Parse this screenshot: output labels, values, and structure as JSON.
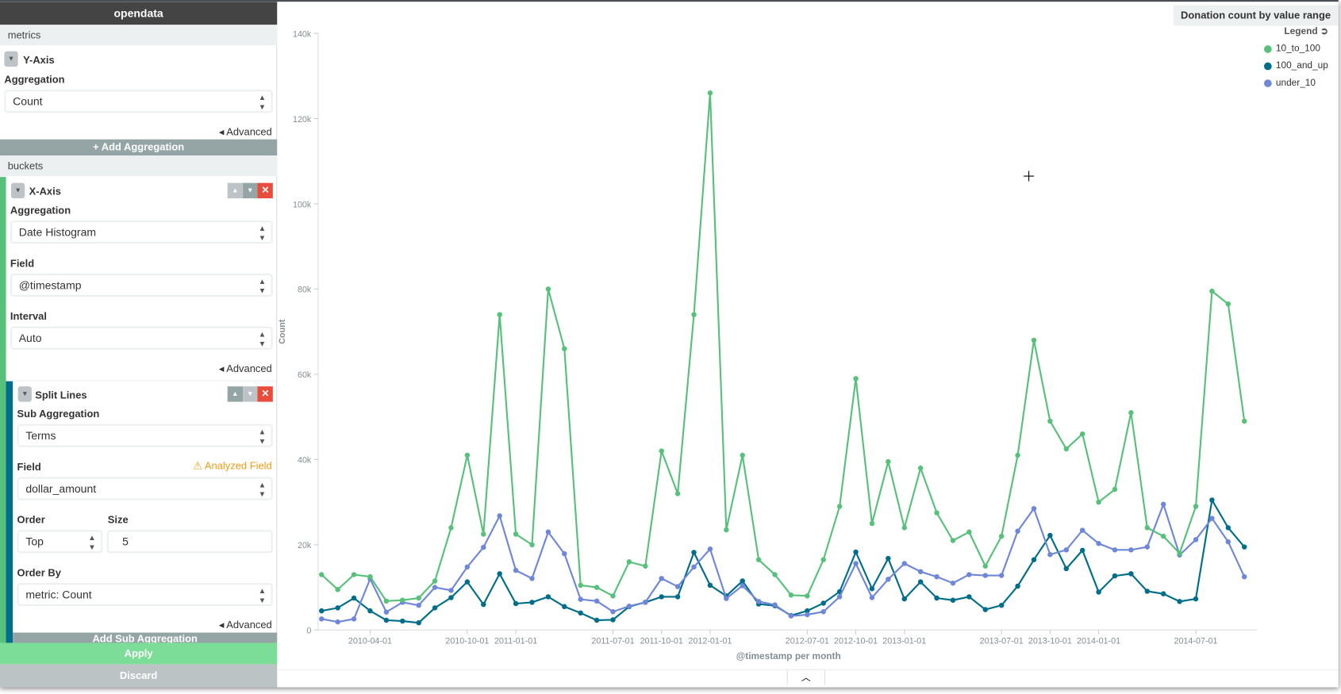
{
  "sidebar": {
    "index_title": "opendata",
    "metrics_label": "metrics",
    "y_axis": {
      "title": "Y-Axis",
      "aggregation_label": "Aggregation",
      "aggregation_value": "Count",
      "advanced": "Advanced"
    },
    "add_aggregation": "+ Add Aggregation",
    "buckets_label": "buckets",
    "x_axis": {
      "title": "X-Axis",
      "aggregation_label": "Aggregation",
      "aggregation_value": "Date Histogram",
      "field_label": "Field",
      "field_value": "@timestamp",
      "interval_label": "Interval",
      "interval_value": "Auto",
      "advanced": "Advanced"
    },
    "split_lines": {
      "title": "Split Lines",
      "sub_aggregation_label": "Sub Aggregation",
      "sub_aggregation_value": "Terms",
      "field_label": "Field",
      "field_warning": "Analyzed Field",
      "field_value": "dollar_amount",
      "order_label": "Order",
      "order_value": "Top",
      "size_label": "Size",
      "size_value": "5",
      "order_by_label": "Order By",
      "order_by_value": "metric: Count",
      "advanced": "Advanced"
    },
    "add_sub_aggregation": "Add Sub Aggregation",
    "apply": "Apply",
    "discard": "Discard"
  },
  "colors": {
    "accent_green": "#57c17b",
    "teal": "#006e8a",
    "purple": "#6f87d8",
    "apply": "#7cdd98",
    "remove": "#e74c3c"
  },
  "chart_data": {
    "type": "line",
    "title": "Donation count by value range",
    "xlabel": "@timestamp per month",
    "ylabel": "Count",
    "ylim": [
      0,
      140000
    ],
    "y_ticks": [
      "0",
      "20k",
      "40k",
      "60k",
      "80k",
      "100k",
      "120k",
      "140k"
    ],
    "x_ticks": [
      "2010-04-01",
      "2010-10-01",
      "2011-01-01",
      "2011-07-01",
      "2011-10-01",
      "2012-01-01",
      "2012-07-01",
      "2012-10-01",
      "2013-01-01",
      "2013-07-01",
      "2013-10-01",
      "2014-01-01",
      "2014-07-01"
    ],
    "x_start": "2010-01-01",
    "x_end": "2014-10-01",
    "x_interval": "month",
    "legend_title": "Legend",
    "legend_position": "top-right",
    "series": [
      {
        "name": "10_to_100",
        "color": "#57c17b",
        "values": [
          13000,
          9500,
          13000,
          12500,
          6800,
          7000,
          7500,
          11500,
          24000,
          41000,
          22500,
          74000,
          22500,
          20000,
          80000,
          66000,
          10500,
          10000,
          8000,
          16000,
          15000,
          42000,
          32000,
          74000,
          126000,
          23500,
          41000,
          16500,
          13000,
          8200,
          8000,
          16500,
          29000,
          59000,
          25000,
          39500,
          24000,
          38000,
          27500,
          21000,
          23000,
          15000,
          22000,
          41000,
          68000,
          49000,
          42500,
          46000,
          30000,
          33000,
          51000,
          24000,
          22000,
          18000,
          29000,
          79500,
          76500,
          49000
        ]
      },
      {
        "name": "100_and_up",
        "color": "#006e8a",
        "values": [
          4500,
          5200,
          7500,
          4500,
          2300,
          2100,
          1700,
          5200,
          7600,
          11300,
          6000,
          13200,
          6200,
          6500,
          7800,
          5500,
          4000,
          2300,
          2400,
          5500,
          6500,
          7800,
          7800,
          18200,
          10500,
          8000,
          11500,
          6100,
          5700,
          3400,
          4500,
          6300,
          9000,
          18300,
          9700,
          16800,
          7300,
          11300,
          7500,
          7000,
          7800,
          4800,
          5800,
          10300,
          16500,
          22200,
          14400,
          18700,
          8900,
          12700,
          13200,
          9100,
          8500,
          6700,
          7300,
          30500,
          24000,
          19500
        ]
      },
      {
        "name": "under_10",
        "color": "#6f87d8",
        "values": [
          2600,
          1900,
          2600,
          12000,
          4200,
          6500,
          5800,
          10000,
          9300,
          14800,
          19400,
          26800,
          14000,
          12100,
          23000,
          17900,
          7200,
          6800,
          4300,
          5600,
          6500,
          12100,
          10200,
          14800,
          19000,
          7400,
          10400,
          6700,
          5900,
          3300,
          3600,
          4300,
          7800,
          15600,
          7600,
          11900,
          15600,
          13700,
          12500,
          11000,
          13000,
          12800,
          12800,
          23200,
          28500,
          17700,
          18800,
          23400,
          20300,
          18800,
          18800,
          19500,
          29500,
          17600,
          21200,
          26200,
          20700,
          12500
        ]
      }
    ]
  }
}
